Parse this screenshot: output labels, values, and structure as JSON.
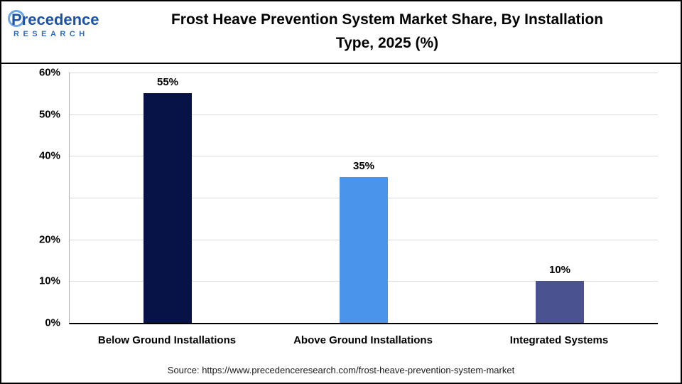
{
  "header": {
    "logo": {
      "name": "Precedence",
      "sub": "RESEARCH"
    },
    "title_line1": "Frost Heave Prevention System Market Share, By Installation",
    "title_line2": "Type, 2025 (%)"
  },
  "chart_data": {
    "type": "bar",
    "title": "Frost Heave Prevention System Market Share, By Installation Type, 2025 (%)",
    "categories": [
      "Below Ground Installations",
      "Above Ground Installations",
      "Integrated Systems"
    ],
    "values": [
      55,
      35,
      10
    ],
    "value_labels": [
      "55%",
      "35%",
      "10%"
    ],
    "bar_colors": [
      "#071246",
      "#4b94eb",
      "#4a5290"
    ],
    "xlabel": "",
    "ylabel": "",
    "ylim": [
      0,
      60
    ],
    "y_tick_labels": [
      "60%",
      "50%",
      "40%",
      "20%",
      "10%",
      "0%"
    ],
    "y_tick_values": [
      60,
      50,
      40,
      20,
      10,
      0
    ],
    "gridline_values": [
      10,
      20,
      30,
      40,
      50,
      60
    ],
    "grid": "horizontal",
    "legend": "none"
  },
  "footer": {
    "source": "Source: https://www.precedenceresearch.com/frost-heave-prevention-system-market"
  }
}
